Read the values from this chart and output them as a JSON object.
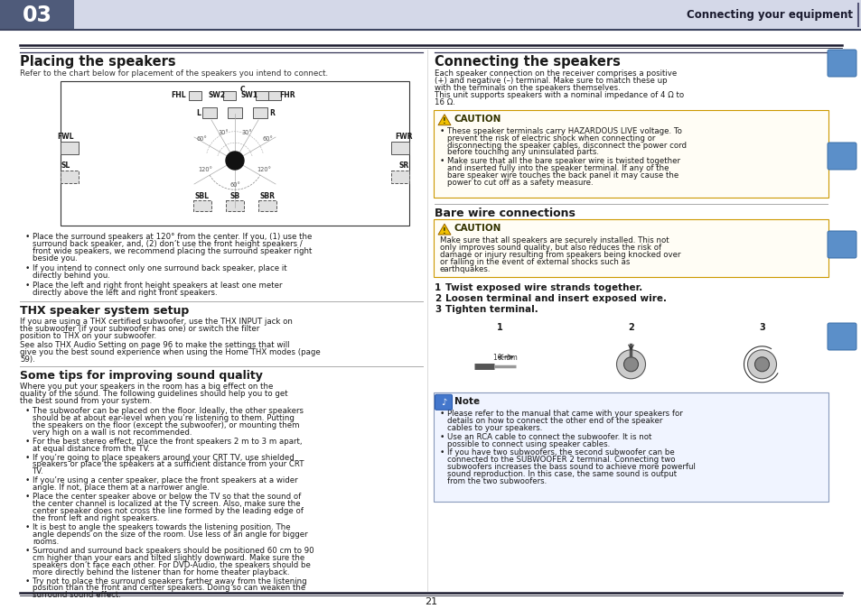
{
  "page_num": "21",
  "chapter_num": "03",
  "chapter_bg_color": "#4f5b7a",
  "header_bar_color": "#d4d8e8",
  "header_text": "Connecting your equipment",
  "header_text_color": "#1a1a2e",
  "bg_color": "#ffffff",
  "text_color": "#1a1a1a",
  "placing_title": "Placing the speakers",
  "placing_subtitle": "Refer to the chart below for placement of the speakers you intend to connect.",
  "placing_bullets": [
    "Place the surround speakers at 120° from the center. If you, (1) use the surround back speaker, and, (2) don’t use the front height speakers / front wide speakers, we recommend placing the surround speaker right beside you.",
    "If you intend to connect only one surround back speaker, place it directly behind you.",
    "Place the left and right front height speakers at least one meter directly above the left and right front speakers."
  ],
  "thx_title": "THX speaker system setup",
  "thx_body1": "If you are using a THX certified subwoofer, use the THX INPUT jack on the subwoofer (if your subwoofer has one) or switch the filter position to THX on your subwoofer.",
  "thx_body2": "See also THX Audio Setting on page 96 to make the settings that will give you the best sound experience when using the Home THX modes (page 59).",
  "tips_title": "Some tips for improving sound quality",
  "tips_intro": "Where you put your speakers in the room has a big effect on the quality of the sound. The following guidelines should help you to get the best sound from your system.",
  "tips_bullets": [
    "The subwoofer can be placed on the floor. Ideally, the other speakers should be at about ear-level when you’re listening to them. Putting the speakers on the floor (except the subwoofer), or mounting them very high on a wall is not recommended.",
    "For the best stereo effect, place the front speakers 2 m to 3 m apart, at equal distance from the TV.",
    "If you’re going to place speakers around your CRT TV, use shielded speakers or place the speakers at a sufficient distance from your CRT TV.",
    "If you’re using a center speaker, place the front speakers at a wider angle. If not, place them at a narrower angle.",
    "Place the center speaker above or below the TV so that the sound of the center channel is localized at the TV screen. Also, make sure the center speaker does not cross the line formed by the leading edge of the front left and right speakers.",
    "It is best to angle the speakers towards the listening position. The angle depends on the size of the room. Use less of an angle for bigger rooms.",
    "Surround and surround back speakers should be positioned 60 cm to 90 cm higher than your ears and tilted slightly downward. Make sure the speakers don’t face each other. For DVD-Audio, the speakers should be more directly behind the listener than for home theater playback.",
    "Try not to place the surround speakers farther away from the listening position than the front and center speakers. Doing so can weaken the surround sound effect."
  ],
  "connecting_title": "Connecting the speakers",
  "connecting_body": "Each speaker connection on the receiver comprises a positive (+) and negative (–) terminal. Make sure to match these up with the terminals on the speakers themselves.\nThis unit supports speakers with a nominal impedance of 4 Ω to 16 Ω.",
  "caution1_bullets": [
    "These speaker terminals carry HAZARDOUS LIVE voltage. To prevent the risk of electric shock when connecting or disconnecting the speaker cables, disconnect the power cord before touching any uninsulated parts.",
    "Make sure that all the bare speaker wire is twisted together and inserted fully into the speaker terminal. If any of the bare speaker wire touches the back panel it may cause the power to cut off as a safety measure."
  ],
  "bare_wire_title": "Bare wire connections",
  "caution2_body": "Make sure that all speakers are securely installed. This not only improves sound quality, but also reduces the risk of damage or injury resulting from speakers being knocked over or falling in the event of external shocks such as earthquakes.",
  "steps": [
    "Twist exposed wire strands together.",
    "Loosen terminal and insert exposed wire.",
    "Tighten terminal."
  ],
  "note_bullets": [
    "Please refer to the manual that came with your speakers for details on how to connect the other end of the speaker cables to your speakers.",
    "Use an RCA cable to connect the subwoofer. It is not possible to connect using speaker cables.",
    "If you have two subwoofers, the second subwoofer can be connected to the SUBWOOFER 2 terminal. Connecting two subwoofers increases the bass sound to achieve more powerful sound reproduction. In this case, the same sound is output from the two subwoofers."
  ],
  "icon_colors": [
    "#5b8fc9",
    "#5b8fc9",
    "#5b8fc9",
    "#5b8fc9"
  ]
}
